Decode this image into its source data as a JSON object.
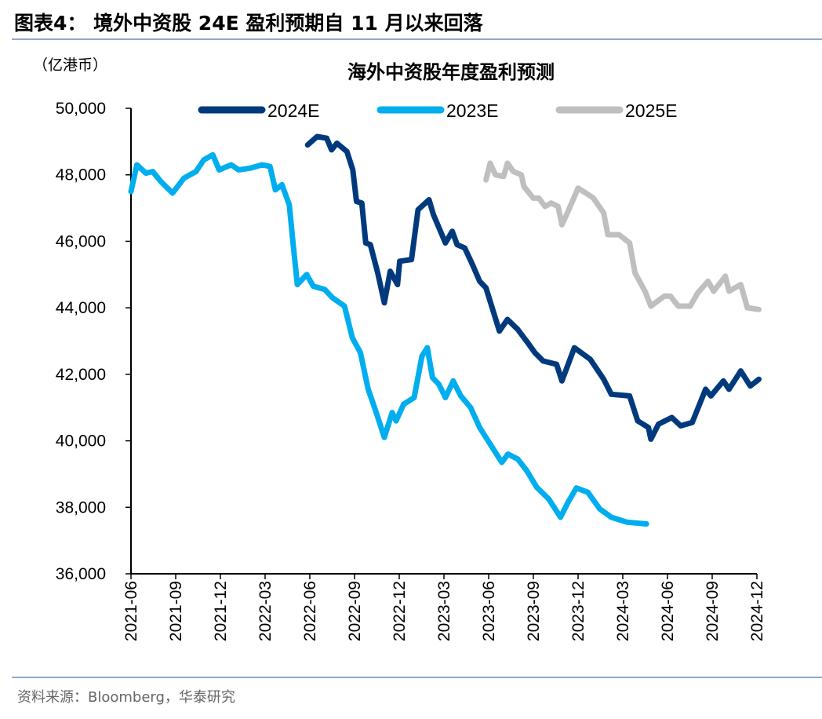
{
  "figure_title": "图表4：  境外中资股 24E 盈利预期自 11 月以来回落",
  "source": "资料来源：Bloomberg，华泰研究",
  "colors": {
    "2024E": "#003a7d",
    "2023E": "#00aeef",
    "2025E": "#bfbfbf",
    "rule": "#8da9c8"
  },
  "chart_data": {
    "type": "line",
    "title": "海外中资股年度盈利预测",
    "unit_label": "（亿港币）",
    "xlabel": "",
    "ylabel": "",
    "ylim": [
      36000,
      50000
    ],
    "xlim": [
      "2021-06-01",
      "2024-12-01"
    ],
    "yticks": [
      "50,000",
      "48,000",
      "46,000",
      "44,000",
      "42,000",
      "40,000",
      "38,000",
      "36,000"
    ],
    "ytick_values": [
      50000,
      48000,
      46000,
      44000,
      42000,
      40000,
      38000,
      36000
    ],
    "xticks": [
      "2021-06",
      "2021-09",
      "2021-12",
      "2022-03",
      "2022-06",
      "2022-09",
      "2022-12",
      "2023-03",
      "2023-06",
      "2023-09",
      "2023-12",
      "2024-03",
      "2024-06",
      "2024-09",
      "2024-12"
    ],
    "grid": false,
    "legend": "top",
    "series": [
      {
        "name": "2024E",
        "color": "#003a7d",
        "points": [
          [
            "2022-05-27",
            48900
          ],
          [
            "2022-06-16",
            49150
          ],
          [
            "2022-07-05",
            49100
          ],
          [
            "2022-07-15",
            48750
          ],
          [
            "2022-07-26",
            48950
          ],
          [
            "2022-08-16",
            48700
          ],
          [
            "2022-08-28",
            48150
          ],
          [
            "2022-09-05",
            47200
          ],
          [
            "2022-09-16",
            47150
          ],
          [
            "2022-09-24",
            45950
          ],
          [
            "2022-10-03",
            45900
          ],
          [
            "2022-10-18",
            45050
          ],
          [
            "2022-11-01",
            44150
          ],
          [
            "2022-11-13",
            45100
          ],
          [
            "2022-11-28",
            44700
          ],
          [
            "2022-12-02",
            45400
          ],
          [
            "2022-12-26",
            45450
          ],
          [
            "2023-01-09",
            46950
          ],
          [
            "2023-02-01",
            47250
          ],
          [
            "2023-02-10",
            46800
          ],
          [
            "2023-03-04",
            45950
          ],
          [
            "2023-03-18",
            46300
          ],
          [
            "2023-03-28",
            45900
          ],
          [
            "2023-04-13",
            45800
          ],
          [
            "2023-04-29",
            45300
          ],
          [
            "2023-05-13",
            44800
          ],
          [
            "2023-05-26",
            44600
          ],
          [
            "2023-06-23",
            43300
          ],
          [
            "2023-07-09",
            43650
          ],
          [
            "2023-07-30",
            43350
          ],
          [
            "2023-08-20",
            42950
          ],
          [
            "2023-09-04",
            42650
          ],
          [
            "2023-09-21",
            42400
          ],
          [
            "2023-10-18",
            42300
          ],
          [
            "2023-10-29",
            41800
          ],
          [
            "2023-11-24",
            42800
          ],
          [
            "2023-12-26",
            42450
          ],
          [
            "2024-01-23",
            41850
          ],
          [
            "2024-02-08",
            41400
          ],
          [
            "2024-03-15",
            41350
          ],
          [
            "2024-04-01",
            40600
          ],
          [
            "2024-04-23",
            40400
          ],
          [
            "2024-04-28",
            40050
          ],
          [
            "2024-05-13",
            40500
          ],
          [
            "2024-06-10",
            40700
          ],
          [
            "2024-06-28",
            40450
          ],
          [
            "2024-07-21",
            40550
          ],
          [
            "2024-08-18",
            41550
          ],
          [
            "2024-08-29",
            41350
          ],
          [
            "2024-09-24",
            41800
          ],
          [
            "2024-10-05",
            41550
          ],
          [
            "2024-10-29",
            42100
          ],
          [
            "2024-11-18",
            41650
          ],
          [
            "2024-12-05",
            41850
          ]
        ]
      },
      {
        "name": "2023E",
        "color": "#00aeef",
        "points": [
          [
            "2021-06-01",
            47500
          ],
          [
            "2021-06-13",
            48300
          ],
          [
            "2021-07-01",
            48050
          ],
          [
            "2021-07-15",
            48100
          ],
          [
            "2021-08-01",
            47800
          ],
          [
            "2021-08-25",
            47450
          ],
          [
            "2021-09-18",
            47900
          ],
          [
            "2021-10-12",
            48100
          ],
          [
            "2021-10-28",
            48450
          ],
          [
            "2021-11-16",
            48600
          ],
          [
            "2021-11-29",
            48150
          ],
          [
            "2021-12-23",
            48300
          ],
          [
            "2022-01-08",
            48150
          ],
          [
            "2022-02-01",
            48200
          ],
          [
            "2022-02-25",
            48300
          ],
          [
            "2022-03-11",
            48250
          ],
          [
            "2022-03-22",
            47550
          ],
          [
            "2022-04-05",
            47700
          ],
          [
            "2022-04-20",
            47100
          ],
          [
            "2022-04-28",
            45900
          ],
          [
            "2022-05-06",
            44700
          ],
          [
            "2022-05-25",
            45000
          ],
          [
            "2022-06-08",
            44650
          ],
          [
            "2022-07-01",
            44550
          ],
          [
            "2022-07-17",
            44300
          ],
          [
            "2022-08-11",
            44050
          ],
          [
            "2022-08-27",
            43100
          ],
          [
            "2022-09-13",
            42650
          ],
          [
            "2022-09-29",
            41550
          ],
          [
            "2022-10-15",
            40850
          ],
          [
            "2022-11-01",
            40100
          ],
          [
            "2022-11-17",
            40850
          ],
          [
            "2022-11-25",
            40600
          ],
          [
            "2022-12-10",
            41100
          ],
          [
            "2023-01-01",
            41300
          ],
          [
            "2023-01-17",
            42550
          ],
          [
            "2023-01-28",
            42800
          ],
          [
            "2023-02-08",
            41900
          ],
          [
            "2023-02-21",
            41700
          ],
          [
            "2023-03-04",
            41300
          ],
          [
            "2023-03-20",
            41800
          ],
          [
            "2023-04-05",
            41350
          ],
          [
            "2023-04-25",
            41000
          ],
          [
            "2023-05-13",
            40400
          ],
          [
            "2023-06-04",
            39900
          ],
          [
            "2023-06-28",
            39350
          ],
          [
            "2023-07-10",
            39600
          ],
          [
            "2023-07-30",
            39450
          ],
          [
            "2023-08-18",
            39100
          ],
          [
            "2023-09-08",
            38600
          ],
          [
            "2023-10-02",
            38250
          ],
          [
            "2023-10-26",
            37700
          ],
          [
            "2023-11-11",
            38150
          ],
          [
            "2023-11-28",
            38580
          ],
          [
            "2023-12-21",
            38450
          ],
          [
            "2024-01-15",
            37950
          ],
          [
            "2024-02-08",
            37700
          ],
          [
            "2024-03-10",
            37550
          ],
          [
            "2024-04-19",
            37500
          ]
        ]
      },
      {
        "name": "2025E",
        "color": "#bfbfbf",
        "points": [
          [
            "2023-05-26",
            47850
          ],
          [
            "2023-06-04",
            48350
          ],
          [
            "2023-06-15",
            48000
          ],
          [
            "2023-07-01",
            47950
          ],
          [
            "2023-07-09",
            48350
          ],
          [
            "2023-07-21",
            48100
          ],
          [
            "2023-08-07",
            48000
          ],
          [
            "2023-08-12",
            47650
          ],
          [
            "2023-09-01",
            47300
          ],
          [
            "2023-09-12",
            47300
          ],
          [
            "2023-09-25",
            47050
          ],
          [
            "2023-10-07",
            47150
          ],
          [
            "2023-10-21",
            47050
          ],
          [
            "2023-10-29",
            46500
          ],
          [
            "2023-11-08",
            46800
          ],
          [
            "2023-12-01",
            47600
          ],
          [
            "2023-12-17",
            47450
          ],
          [
            "2024-01-02",
            47300
          ],
          [
            "2024-01-23",
            46850
          ],
          [
            "2024-02-01",
            46200
          ],
          [
            "2024-02-24",
            46200
          ],
          [
            "2024-03-15",
            45950
          ],
          [
            "2024-03-26",
            45050
          ],
          [
            "2024-04-16",
            44500
          ],
          [
            "2024-04-28",
            44050
          ],
          [
            "2024-05-25",
            44350
          ],
          [
            "2024-06-07",
            44350
          ],
          [
            "2024-06-23",
            44050
          ],
          [
            "2024-07-17",
            44050
          ],
          [
            "2024-08-02",
            44450
          ],
          [
            "2024-08-23",
            44800
          ],
          [
            "2024-09-04",
            44500
          ],
          [
            "2024-09-28",
            44950
          ],
          [
            "2024-10-05",
            44500
          ],
          [
            "2024-10-29",
            44700
          ],
          [
            "2024-11-12",
            44000
          ],
          [
            "2024-12-05",
            43950
          ]
        ]
      }
    ]
  }
}
